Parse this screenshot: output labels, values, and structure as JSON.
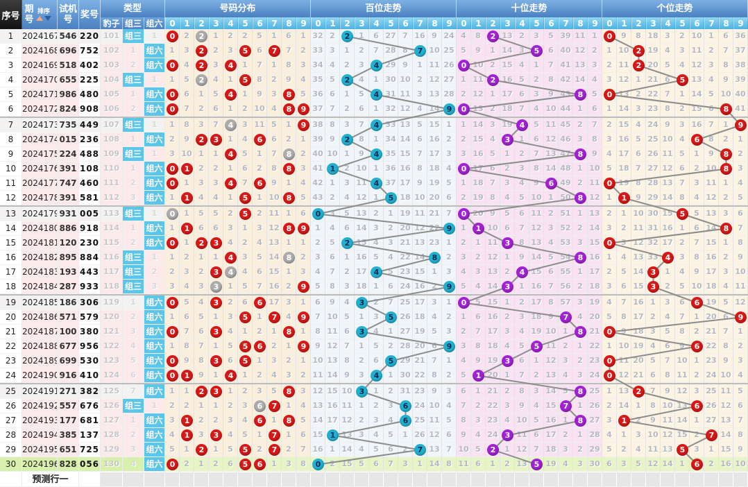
{
  "header": {
    "seq": "序号",
    "period": "期号",
    "sort": "排序",
    "test": "试机号",
    "prize": "奖号",
    "type": "类型",
    "leopard": "豹子",
    "zu3": "组三",
    "zu6": "组六",
    "sections": [
      "号码分布",
      "百位走势",
      "十位走势",
      "个位走势"
    ],
    "digits": [
      "0",
      "1",
      "2",
      "3",
      "4",
      "5",
      "6",
      "7",
      "8",
      "9"
    ]
  },
  "footer": {
    "prediction": "预测行一"
  },
  "colors": {
    "header_blue": "#4a80c2",
    "header_digit_cyan": "#4cb2e4",
    "header_black": "#1e1e1e",
    "label_cyan": "#5bc6e9",
    "circle_red": "#d81717",
    "circle_gray": "#ababab",
    "circle_cyan": "#22b0d1",
    "circle_purple": "#a321d4",
    "line_gray": "#8c8c8c",
    "bg_distribution": "#f9efdc",
    "bg_hundreds": "#eff5f9",
    "bg_tens": "#f9e3f3",
    "bg_units": "#fcf3e2",
    "bg_row_pink": "#fce9e9",
    "bg_row_green_left": "#d9efad",
    "bg_row_green_grid": "#e7f4c6",
    "sort_up": "#f2a988",
    "sort_down": "#2d5c9e"
  },
  "chart_data": {
    "type": "table",
    "columns": [
      "序号",
      "期号",
      "试机号",
      "奖号",
      "豹子",
      "组三",
      "组六",
      "号码分布 0-9",
      "百位走势 0-9",
      "十位走势 0-9",
      "个位走势 0-9"
    ],
    "rows": [
      {
        "seq": "1",
        "period": "2024167",
        "test": "546",
        "prize": "220",
        "leopard": "101",
        "zu3": "组三",
        "zu6": "1"
      },
      {
        "seq": "2",
        "period": "2024168",
        "test": "696",
        "prize": "752",
        "leopard": "102",
        "zu3": "1",
        "zu6": "组六"
      },
      {
        "seq": "3",
        "period": "2024169",
        "test": "518",
        "prize": "402",
        "leopard": "103",
        "zu3": "2",
        "zu6": "组六"
      },
      {
        "seq": "4",
        "period": "2024170",
        "test": "655",
        "prize": "225",
        "leopard": "104",
        "zu3": "组三",
        "zu6": "1"
      },
      {
        "seq": "5",
        "period": "2024171",
        "test": "986",
        "prize": "480",
        "leopard": "105",
        "zu3": "1",
        "zu6": "组六"
      },
      {
        "seq": "6",
        "period": "2024172",
        "test": "824",
        "prize": "908",
        "leopard": "106",
        "zu3": "2",
        "zu6": "组六"
      },
      {
        "seq": "7",
        "period": "2024173",
        "test": "735",
        "prize": "449",
        "leopard": "107",
        "zu3": "组三",
        "zu6": "1"
      },
      {
        "seq": "8",
        "period": "2024174",
        "test": "015",
        "prize": "236",
        "leopard": "108",
        "zu3": "1",
        "zu6": "组六"
      },
      {
        "seq": "9",
        "period": "2024175",
        "test": "224",
        "prize": "488",
        "leopard": "109",
        "zu3": "组三",
        "zu6": "1"
      },
      {
        "seq": "10",
        "period": "2024176",
        "test": "391",
        "prize": "108",
        "leopard": "110",
        "zu3": "1",
        "zu6": "组六"
      },
      {
        "seq": "11",
        "period": "2024177",
        "test": "747",
        "prize": "460",
        "leopard": "111",
        "zu3": "2",
        "zu6": "组六"
      },
      {
        "seq": "12",
        "period": "2024178",
        "test": "391",
        "prize": "581",
        "leopard": "112",
        "zu3": "3",
        "zu6": "组六"
      },
      {
        "seq": "13",
        "period": "2024179",
        "test": "931",
        "prize": "005",
        "leopard": "113",
        "zu3": "组三",
        "zu6": "1"
      },
      {
        "seq": "14",
        "period": "2024180",
        "test": "886",
        "prize": "918",
        "leopard": "114",
        "zu3": "1",
        "zu6": "组六"
      },
      {
        "seq": "15",
        "period": "2024181",
        "test": "120",
        "prize": "230",
        "leopard": "115",
        "zu3": "2",
        "zu6": "组六"
      },
      {
        "seq": "16",
        "period": "2024182",
        "test": "895",
        "prize": "884",
        "leopard": "116",
        "zu3": "组三",
        "zu6": "1"
      },
      {
        "seq": "17",
        "period": "2024183",
        "test": "193",
        "prize": "443",
        "leopard": "117",
        "zu3": "组三",
        "zu6": "2"
      },
      {
        "seq": "18",
        "period": "2024184",
        "test": "287",
        "prize": "933",
        "leopard": "118",
        "zu3": "组三",
        "zu6": "3"
      },
      {
        "seq": "19",
        "period": "2024185",
        "test": "186",
        "prize": "306",
        "leopard": "119",
        "zu3": "1",
        "zu6": "组六"
      },
      {
        "seq": "20",
        "period": "2024186",
        "test": "571",
        "prize": "579",
        "leopard": "120",
        "zu3": "2",
        "zu6": "组六"
      },
      {
        "seq": "21",
        "period": "2024187",
        "test": "100",
        "prize": "380",
        "leopard": "121",
        "zu3": "3",
        "zu6": "组六"
      },
      {
        "seq": "22",
        "period": "2024188",
        "test": "677",
        "prize": "956",
        "leopard": "122",
        "zu3": "4",
        "zu6": "组六"
      },
      {
        "seq": "23",
        "period": "2024189",
        "test": "699",
        "prize": "530",
        "leopard": "123",
        "zu3": "5",
        "zu6": "组六"
      },
      {
        "seq": "24",
        "period": "2024190",
        "test": "916",
        "prize": "410",
        "leopard": "124",
        "zu3": "6",
        "zu6": "组六"
      },
      {
        "seq": "25",
        "period": "2024191",
        "test": "271",
        "prize": "382",
        "leopard": "125",
        "zu3": "7",
        "zu6": "组六"
      },
      {
        "seq": "26",
        "period": "2024192",
        "test": "557",
        "prize": "676",
        "leopard": "126",
        "zu3": "组三",
        "zu6": "1"
      },
      {
        "seq": "27",
        "period": "2024193",
        "test": "177",
        "prize": "681",
        "leopard": "127",
        "zu3": "1",
        "zu6": "组六"
      },
      {
        "seq": "28",
        "period": "2024194",
        "test": "385",
        "prize": "137",
        "leopard": "128",
        "zu3": "2",
        "zu6": "组六"
      },
      {
        "seq": "29",
        "period": "2024195",
        "test": "651",
        "prize": "725",
        "leopard": "129",
        "zu3": "3",
        "zu6": "组六"
      },
      {
        "seq": "30",
        "period": "2024196",
        "test": "828",
        "prize": "056",
        "leopard": "130",
        "zu3": "4",
        "zu6": "组六"
      }
    ],
    "hundreds_digits": [
      2,
      7,
      4,
      2,
      4,
      9,
      4,
      2,
      4,
      1,
      4,
      5,
      0,
      9,
      2,
      8,
      4,
      9,
      3,
      5,
      3,
      9,
      5,
      4,
      3,
      6,
      6,
      1,
      7,
      0
    ],
    "tens_digits": [
      2,
      5,
      0,
      2,
      8,
      0,
      4,
      3,
      8,
      0,
      6,
      8,
      0,
      1,
      3,
      8,
      4,
      3,
      0,
      7,
      8,
      5,
      3,
      1,
      8,
      7,
      8,
      3,
      2,
      5
    ],
    "units_digits": [
      0,
      2,
      2,
      5,
      0,
      8,
      9,
      6,
      8,
      8,
      0,
      1,
      5,
      8,
      0,
      4,
      3,
      3,
      6,
      9,
      0,
      6,
      0,
      0,
      2,
      6,
      1,
      7,
      5,
      6
    ],
    "row1_seed_miss": {
      "distribution": [
        0,
        2,
        0,
        1,
        2,
        2,
        5,
        1,
        6,
        1
      ],
      "hundreds": [
        32,
        2,
        0,
        1,
        6,
        27,
        7,
        16,
        9,
        24
      ],
      "tens": [
        4,
        8,
        0,
        13,
        2,
        3,
        5,
        39,
        11,
        1
      ],
      "units": [
        0,
        9,
        8,
        18,
        3,
        2,
        10,
        1,
        6,
        36
      ]
    },
    "miss_rule": "each cell shows periods since the digit last appeared; it resets to a circled digit when drawn (red=drawn once, gray=digit appears twice in prize; cyan=hundreds, purple=tens, red=units). Row 1 displayed values given in row1_seed_miss."
  }
}
